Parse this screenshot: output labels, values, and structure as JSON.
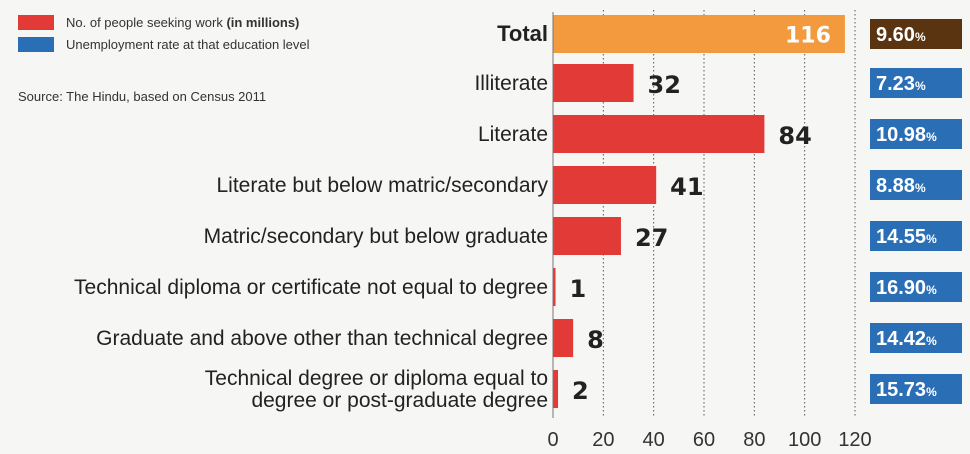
{
  "legend": {
    "seekers_label_main": "No. of people seeking work ",
    "seekers_label_bold": "(in millions)",
    "rate_label": "Unemployment rate at that education level"
  },
  "source": "Source: The Hindu, based on Census 2011",
  "colors": {
    "total_bar": "#f39a3e",
    "category_bar": "#e23a36",
    "rate_box": "#2a6fb5",
    "total_rate_box": "#5a3310",
    "legend_red": "#e23a36",
    "legend_blue": "#2a6fb5"
  },
  "chart_data": {
    "type": "bar",
    "orientation": "horizontal",
    "categories": [
      [
        "Total"
      ],
      [
        "Illiterate"
      ],
      [
        "Literate"
      ],
      [
        "Literate but below matric/secondary"
      ],
      [
        "Matric/secondary but below graduate"
      ],
      [
        "Technical diploma or certificate not equal to degree"
      ],
      [
        "Graduate and above other than technical degree"
      ],
      [
        "Technical degree or diploma equal to",
        "degree or post-graduate degree"
      ]
    ],
    "series": [
      {
        "name": "No. of people seeking work (in millions)",
        "values": [
          116,
          32,
          84,
          41,
          27,
          1,
          8,
          2
        ]
      },
      {
        "name": "Unemployment rate at that education level",
        "values": [
          "9.60",
          "7.23",
          "10.98",
          "8.88",
          "14.55",
          "16.90",
          "14.42",
          "15.73"
        ],
        "unit": "%"
      }
    ],
    "xlim": [
      0,
      120
    ],
    "xticks": [
      0,
      20,
      40,
      60,
      80,
      100,
      120
    ],
    "grid": "vertical dotted"
  }
}
